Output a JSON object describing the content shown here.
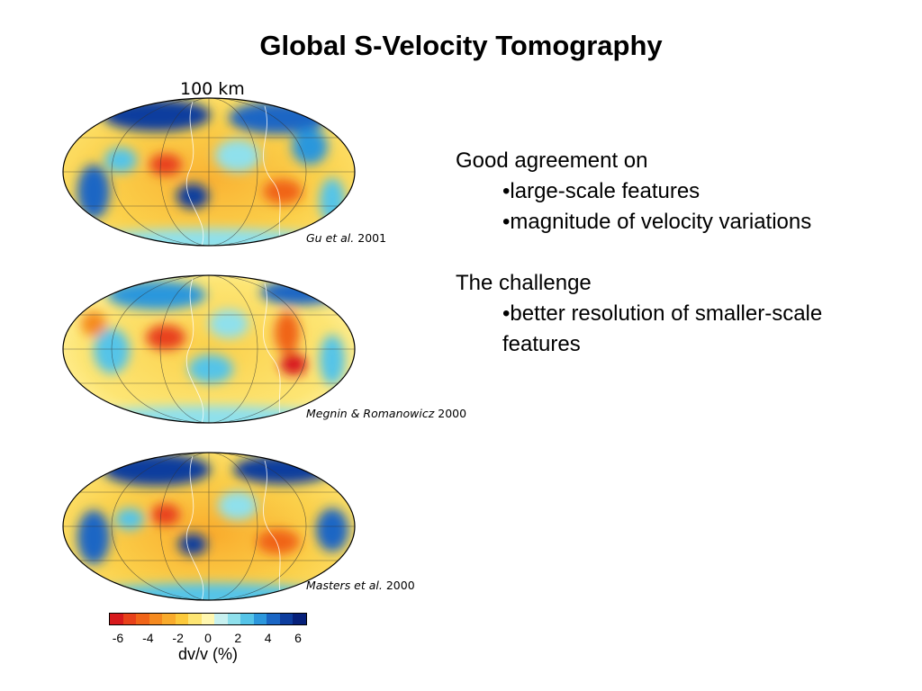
{
  "title": "Global S-Velocity Tomography",
  "depth_label": "100 km",
  "maps": [
    {
      "citation_authors": "Gu et al.",
      "citation_year": "2001"
    },
    {
      "citation_authors": "Megnin & Romanowicz",
      "citation_year": "2000"
    },
    {
      "citation_authors": "Masters et al.",
      "citation_year": "2000"
    }
  ],
  "colorbar": {
    "label": "dv/v (%)",
    "ticks": [
      "-6",
      "-4",
      "-2",
      "0",
      "2",
      "4",
      "6"
    ],
    "colors": [
      "#d7191c",
      "#e8411a",
      "#f06418",
      "#f58a1f",
      "#f9ab2c",
      "#fcc93b",
      "#fde573",
      "#fff7b0",
      "#c8f1f0",
      "#8fe0ec",
      "#55c4e8",
      "#2c97dc",
      "#1a66c4",
      "#0d3d9e",
      "#06207a"
    ]
  },
  "text": {
    "heading1": "Good agreement on",
    "bullet1": "•large-scale features",
    "bullet2": "•magnitude of velocity variations",
    "heading2": "The challenge",
    "bullet3": "•better resolution of smaller-scale",
    "bullet3_cont": "features"
  },
  "colors": {
    "slow_red": "#d7191c",
    "neutral_yellow": "#f6d24a",
    "fast_blue": "#0d3d9e"
  }
}
